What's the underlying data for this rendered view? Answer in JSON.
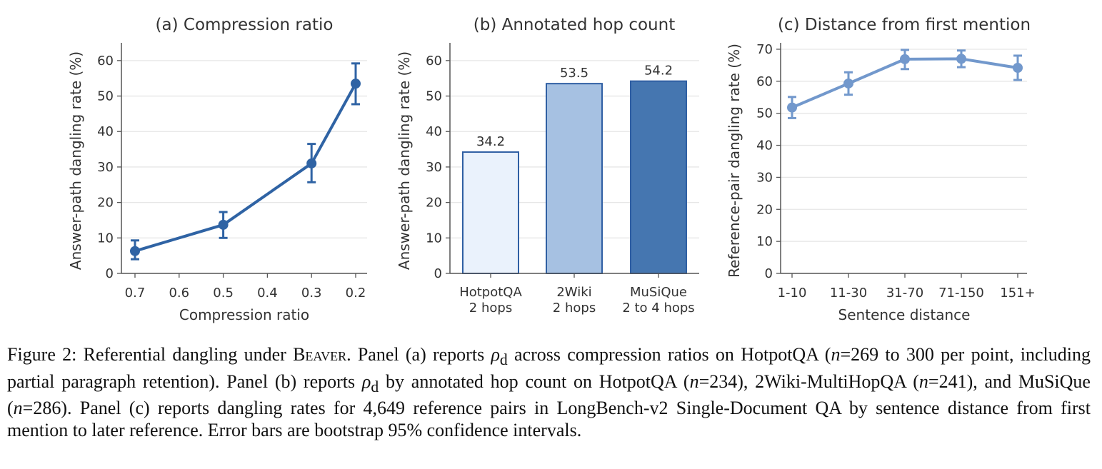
{
  "colors": {
    "panel_a_line": "#2f63a4",
    "panel_c_line": "#7298cc",
    "bar_edge": "#2f5fa3",
    "bar_fills": [
      "#eaf2fc",
      "#a6c1e2",
      "#4576b0"
    ],
    "grid": "#e6e6e6",
    "axis": "#555555"
  },
  "chart_data": [
    {
      "type": "line",
      "title": "(a) Compression ratio",
      "xlabel": "Compression ratio",
      "ylabel": "Answer-path dangling rate (%)",
      "x_ticks": [
        "0.7",
        "0.6",
        "0.5",
        "0.4",
        "0.3",
        "0.2"
      ],
      "x_direction": "reversed",
      "xlim": [
        0.7,
        0.2
      ],
      "ylim": [
        0,
        65
      ],
      "y_ticks": [
        "0",
        "10",
        "20",
        "30",
        "40",
        "50",
        "60"
      ],
      "grid": "horizontal",
      "series": [
        {
          "x": [
            0.7,
            0.5,
            0.3,
            0.2
          ],
          "values": [
            6.3,
            13.7,
            31.0,
            53.5
          ],
          "ci_low": [
            4.0,
            10.0,
            25.7,
            47.7
          ],
          "ci_high": [
            9.3,
            17.3,
            36.5,
            59.2
          ]
        }
      ]
    },
    {
      "type": "bar",
      "title": "(b) Annotated hop count",
      "ylabel": "Answer-path dangling rate (%)",
      "categories": [
        [
          "HotpotQA",
          "2 hops"
        ],
        [
          "2Wiki",
          "2 hops"
        ],
        [
          "MuSiQue",
          "2 to 4 hops"
        ]
      ],
      "values": [
        34.2,
        53.5,
        54.2
      ],
      "data_labels": [
        "34.2",
        "53.5",
        "54.2"
      ],
      "ylim": [
        0,
        65
      ],
      "y_ticks": [
        "0",
        "10",
        "20",
        "30",
        "40",
        "50",
        "60"
      ],
      "grid": "horizontal"
    },
    {
      "type": "line",
      "title": "(c) Distance from first mention",
      "xlabel": "Sentence distance",
      "ylabel": "Reference-pair dangling rate (%)",
      "categories": [
        "1-10",
        "11-30",
        "31-70",
        "71-150",
        "151+"
      ],
      "ylim": [
        0,
        72
      ],
      "y_ticks": [
        "0",
        "10",
        "20",
        "30",
        "40",
        "50",
        "60",
        "70"
      ],
      "grid": "horizontal",
      "series": [
        {
          "values": [
            51.8,
            59.3,
            66.9,
            67.0,
            64.2
          ],
          "ci_low": [
            48.5,
            55.8,
            63.8,
            64.4,
            60.4
          ],
          "ci_high": [
            55.1,
            62.8,
            69.8,
            69.6,
            68.0
          ]
        }
      ]
    }
  ],
  "caption": {
    "figure_label": "Figure 2:",
    "p1": " Referential dangling under ",
    "beaver": "Beaver",
    "p2": ". Panel (a) reports ",
    "rho": "ρ",
    "sub_d": "d",
    "p3": " across compression ratios on HotpotQA (",
    "n": "n",
    "p4": "=269 to 300 per point, including partial paragraph retention). Panel (b) reports ",
    "p5": " by annotated hop count on HotpotQA (",
    "p6": "=234), 2Wiki-MultiHopQA (",
    "p7": "=241), and MuSiQue (",
    "p8": "=286). Panel (c) reports dangling rates for 4,649 reference pairs in LongBench-v2 Single-Document QA by sentence distance from first mention to later reference. Error bars are bootstrap 95% confidence intervals."
  }
}
